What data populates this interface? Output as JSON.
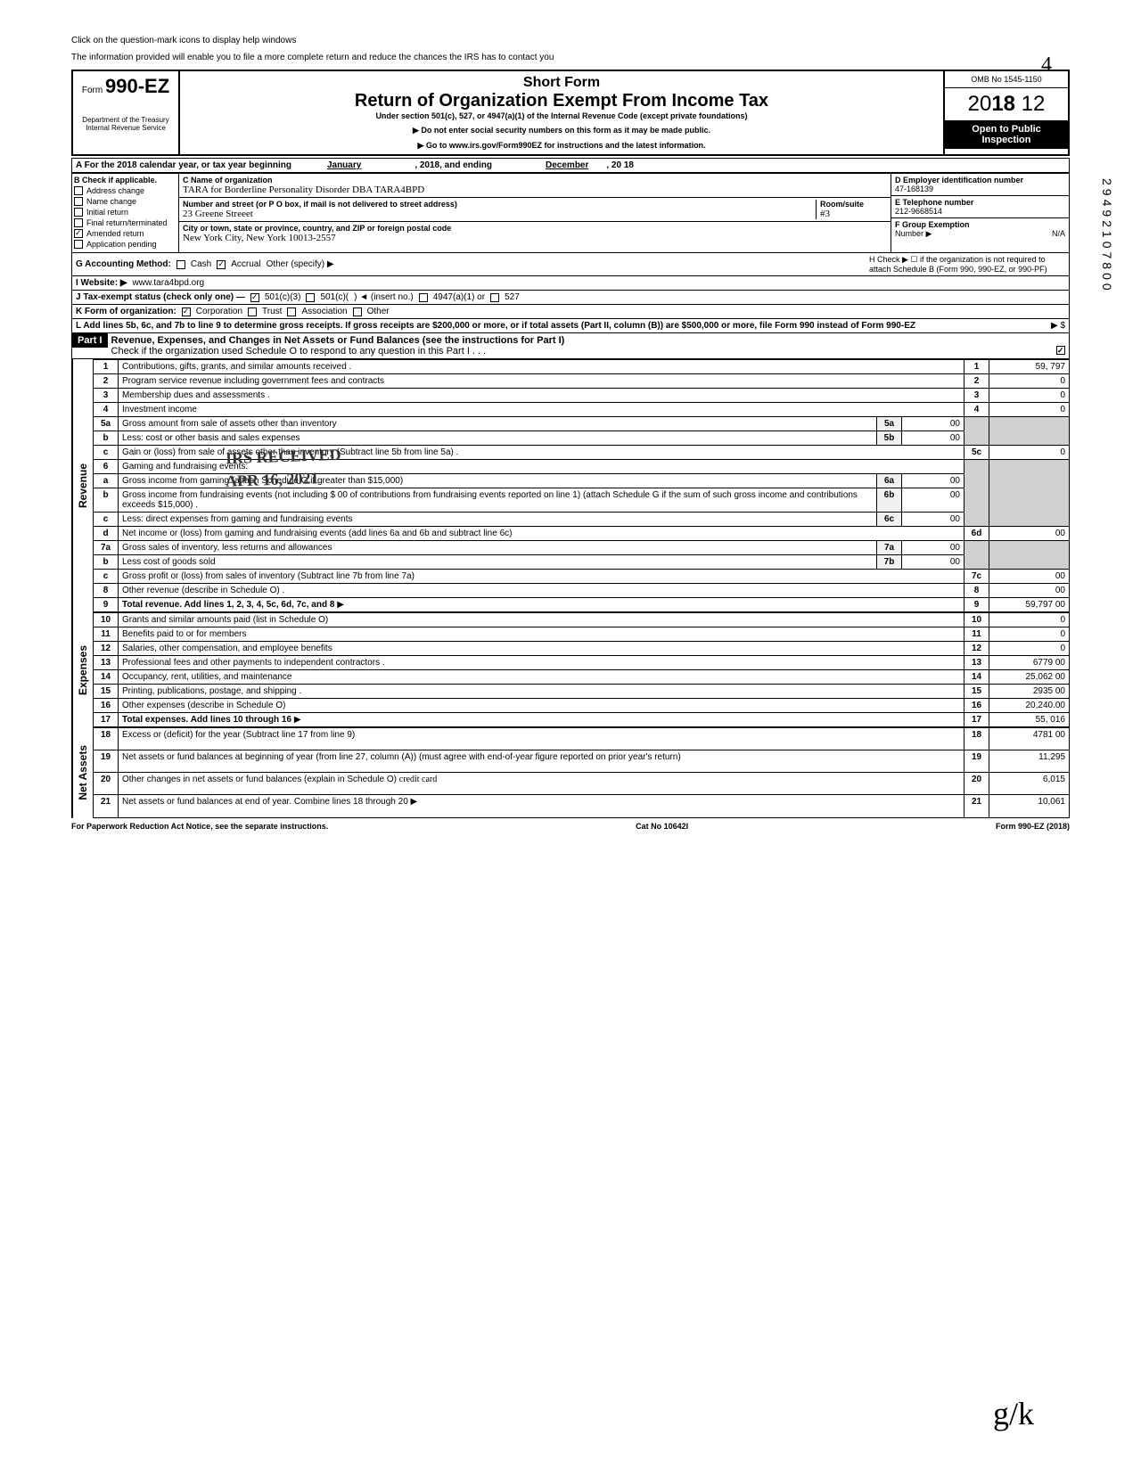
{
  "help_text_1": "Click on the question-mark icons to display help windows",
  "help_text_2": "The information provided will enable you to file a more complete return and reduce the chances the IRS has to contact you",
  "form_number_prefix": "Form",
  "form_number": "990-EZ",
  "dept": "Department of the Treasury\nInternal Revenue Service",
  "short_form": "Short Form",
  "return_title": "Return of Organization Exempt From Income Tax",
  "under_section": "Under section 501(c), 527, or 4947(a)(1) of the Internal Revenue Code (except private foundations)",
  "do_not_enter": "▶ Do not enter social security numbers on this form as it may be made public.",
  "go_to": "▶ Go to www.irs.gov/Form990EZ for instructions and the latest information.",
  "omb": "OMB No 1545-1150",
  "year_prefix": "20",
  "year_bold": "18",
  "year_suffix": " 12",
  "open_public": "Open to Public Inspection",
  "tax_year_a": "A  For the 2018 calendar year, or tax year beginning",
  "tax_year_begin": "January",
  "tax_year_mid": ", 2018, and ending",
  "tax_year_end_month": "December",
  "tax_year_end_year": ", 20    18",
  "b_label": "B  Check if applicable.",
  "b_items": [
    "Address change",
    "Name change",
    "Initial return",
    "Final return/terminated",
    "Amended return",
    "Application pending"
  ],
  "b_checked": [
    false,
    false,
    false,
    false,
    true,
    false
  ],
  "c_label": "C  Name of organization",
  "c_name": "TARA for Borderline Personality Disorder      DBA TARA4BPD",
  "c_street_label": "Number and street (or P O  box, if mail is not delivered to street address)",
  "c_street": "23 Greene Streeet",
  "c_room_label": "Room/suite",
  "c_room": "#3",
  "c_city_label": "City or town, state or province, country, and ZIP or foreign postal code",
  "c_city": "New York City, New York  10013-2557",
  "d_label": "D Employer identification number",
  "d_ein": "47-168139",
  "e_label": "E  Telephone number",
  "e_phone": "212-9668514",
  "f_label": "F  Group Exemption",
  "f_number": "Number  ▶",
  "f_val": "N/A",
  "g_label": "G  Accounting Method:",
  "g_cash": "Cash",
  "g_accrual": "Accrual",
  "g_other": "Other (specify) ▶",
  "h_label": "H  Check ▶ ☐ if the organization is not required to attach Schedule B (Form 990, 990-EZ, or 990-PF)",
  "i_label": "I  Website: ▶",
  "i_website": "www.tara4bpd.org",
  "j_label": "J  Tax-exempt status (check only one) —",
  "j_501c3": "501(c)(3)",
  "j_501c": "501(c)(",
  "j_insert": ") ◄ (insert no.)",
  "j_4947": "4947(a)(1) or",
  "j_527": "527",
  "k_label": "K  Form of organization:",
  "k_corp": "Corporation",
  "k_trust": "Trust",
  "k_assoc": "Association",
  "k_other": "Other",
  "l_label": "L  Add lines 5b, 6c, and 7b to line 9 to determine gross receipts. If gross receipts are $200,000 or more, or if total assets (Part II, column (B)) are $500,000 or more, file Form 990 instead of Form 990-EZ",
  "l_arrow": "▶    $",
  "part1_label": "Part I",
  "part1_title": "Revenue, Expenses, and Changes in Net Assets or Fund Balances (see the instructions for Part I)",
  "part1_check": "Check if the organization used Schedule O to respond to any question in this Part I  .  .  .",
  "stamp_received": "IRS RECEIVED",
  "stamp_date": "APR 16, 2021",
  "revenue_label": "Revenue",
  "expenses_label": "Expenses",
  "netassets_label": "Net Assets",
  "lines": {
    "1": {
      "desc": "Contributions, gifts, grants, and similar amounts received .",
      "amt": "59, 797"
    },
    "2": {
      "desc": "Program service revenue including government fees and contracts",
      "amt": "0"
    },
    "3": {
      "desc": "Membership dues and assessments .",
      "amt": "0"
    },
    "4": {
      "desc": "Investment income",
      "amt": "0"
    },
    "5a": {
      "desc": "Gross amount from sale of assets other than inventory",
      "sub": "5a",
      "subval": "00"
    },
    "5b": {
      "desc": "Less: cost or other basis and sales expenses",
      "sub": "5b",
      "subval": "00"
    },
    "5c": {
      "desc": "Gain or (loss) from sale of assets other than inventory (Subtract line 5b from line 5a) .",
      "amt": "0"
    },
    "6": {
      "desc": "Gaming and fundraising events:"
    },
    "6a": {
      "desc": "Gross income from gaming (attach Schedule G if greater than $15,000)",
      "sub": "6a",
      "subval": "00"
    },
    "6b": {
      "desc": "Gross income from fundraising events (not including  $              00 of contributions from fundraising events reported on line 1) (attach Schedule G if the sum of such gross income and contributions exceeds $15,000) .",
      "sub": "6b",
      "subval": "00"
    },
    "6c": {
      "desc": "Less: direct expenses from gaming and fundraising events",
      "sub": "6c",
      "subval": "00"
    },
    "6d": {
      "desc": "Net income or (loss) from gaming and fundraising events (add lines 6a and 6b and subtract line 6c)",
      "amt": "00"
    },
    "7a": {
      "desc": "Gross sales of inventory, less returns and allowances",
      "sub": "7a",
      "subval": "00"
    },
    "7b": {
      "desc": "Less cost of goods sold",
      "sub": "7b",
      "subval": "00"
    },
    "7c": {
      "desc": "Gross profit or (loss) from sales of inventory (Subtract line 7b from line 7a)",
      "amt": "00"
    },
    "8": {
      "desc": "Other revenue (describe in Schedule O) .",
      "amt": "00"
    },
    "9": {
      "desc": "Total revenue. Add lines 1, 2, 3, 4, 5c, 6d, 7c, and 8",
      "amt": "59,797 00"
    },
    "10": {
      "desc": "Grants and similar amounts paid (list in Schedule O)",
      "amt": "0"
    },
    "11": {
      "desc": "Benefits paid to or for members",
      "amt": "0"
    },
    "12": {
      "desc": "Salaries, other compensation, and employee benefits",
      "amt": "0"
    },
    "13": {
      "desc": "Professional fees and other payments to independent contractors .",
      "amt": "6779 00"
    },
    "14": {
      "desc": "Occupancy, rent, utilities, and maintenance",
      "amt": "25,062 00"
    },
    "15": {
      "desc": "Printing, publications, postage, and shipping .",
      "amt": "2935 00"
    },
    "16": {
      "desc": "Other expenses (describe in Schedule O)",
      "amt": "20,240.00"
    },
    "17": {
      "desc": "Total expenses. Add lines 10 through 16",
      "amt": "55, 016"
    },
    "18": {
      "desc": "Excess or (deficit) for the year (Subtract line 17 from line 9)",
      "amt": "4781 00"
    },
    "19": {
      "desc": "Net assets or fund balances at beginning of year (from line 27, column (A)) (must agree with end-of-year figure reported on prior year's return)",
      "amt": "11,295"
    },
    "20": {
      "desc": "Other changes in net assets or fund balances (explain in Schedule O)",
      "amt": "6,015"
    },
    "21": {
      "desc": "Net assets or fund balances at end of year. Combine lines 18 through 20",
      "amt": "10,061"
    }
  },
  "footer_left": "For Paperwork Reduction Act Notice, see the separate instructions.",
  "footer_center": "Cat No  10642I",
  "footer_right": "Form 990-EZ (2018)",
  "side_number": "29492107800",
  "top_4": "4",
  "initials": "g/k",
  "handwritten_20": "credit card"
}
